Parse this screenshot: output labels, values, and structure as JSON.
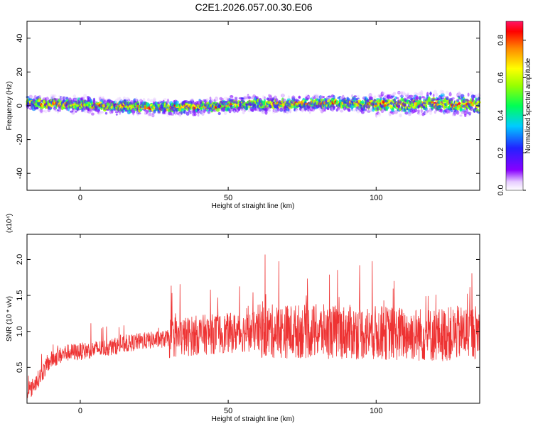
{
  "title": "C2E1.2026.057.00.30.E06",
  "chart_data": [
    {
      "type": "heatmap",
      "name": "spectrogram",
      "xlabel": "Height of straight line (km)",
      "ylabel": "Frequency (Hz)",
      "xlim": [
        -18,
        135
      ],
      "ylim": [
        -50,
        50
      ],
      "xticks": [
        0,
        50,
        100
      ],
      "yticks": [
        40,
        20,
        0,
        -20,
        -40
      ],
      "ridge": {
        "description_points_x": [
          -18,
          0,
          20,
          40,
          60,
          80,
          100,
          120,
          135
        ],
        "description_points_y": [
          1.5,
          0.5,
          -1,
          -0.5,
          1,
          1.5,
          1,
          1.5,
          0.5
        ]
      },
      "colorbar": {
        "label": "Normalized spectral amplitude",
        "range": [
          0.0,
          0.9
        ],
        "ticks": [
          "0.0",
          "0.2",
          "0.4",
          "0.6",
          "0.8"
        ]
      }
    },
    {
      "type": "line",
      "name": "snr",
      "xlabel": "Height of straight line (km)",
      "ylabel": "SNR (10 * v/v)",
      "multiplier_label": "(x10⁴)",
      "xlim": [
        -18,
        135
      ],
      "ylim": [
        0.0,
        2.35
      ],
      "xticks": [
        0,
        50,
        100
      ],
      "yticks": [
        0.5,
        1.0,
        1.5,
        2.0
      ],
      "ytick_labels": [
        "0.5",
        "1.0",
        "1.5",
        "2.0"
      ],
      "color": "#ee3333",
      "trend": {
        "x": [
          -18,
          -14,
          -10,
          -5,
          0,
          10,
          20,
          30,
          40,
          60,
          80,
          100,
          120,
          135
        ],
        "y": [
          0.12,
          0.35,
          0.6,
          0.7,
          0.72,
          0.78,
          0.86,
          0.9,
          0.95,
          1.0,
          1.0,
          0.98,
          0.95,
          1.0
        ]
      }
    }
  ]
}
